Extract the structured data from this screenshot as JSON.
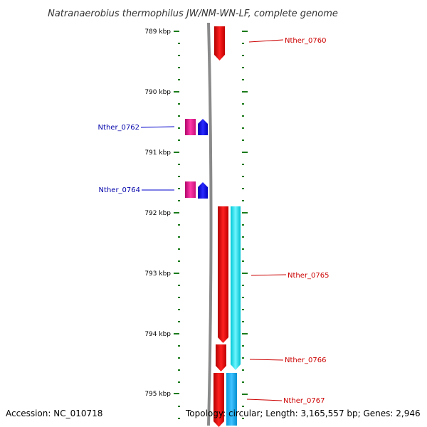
{
  "title": "Natranaerobius thermophilus JW/NM-WN-LF, complete genome",
  "ruler": {
    "unit": "kbp",
    "labels": [
      "789 kbp",
      "790 kbp",
      "791 kbp",
      "792 kbp",
      "793 kbp",
      "794 kbp",
      "795 kbp"
    ],
    "tick_color": "#1a7a1a"
  },
  "genes": [
    {
      "label": "Nther_0760",
      "strand": "reverse",
      "color": "#e8141b"
    },
    {
      "label": "Nther_0762",
      "strand": "forward",
      "color": "#1010e0"
    },
    {
      "label": "Nther_0764",
      "strand": "forward",
      "color": "#1010e0"
    },
    {
      "label": "Nther_0765",
      "strand": "reverse",
      "color": "#e8141b"
    },
    {
      "label": "Nther_0766",
      "strand": "reverse",
      "color": "#e8141b"
    },
    {
      "label": "Nther_0767",
      "strand": "reverse",
      "color": "#e8141b"
    }
  ],
  "colors": {
    "forward_label": "#0000aa",
    "reverse_label": "#cc0000",
    "cds_reverse": "#e8141b",
    "cds_forward": "#1010e0",
    "feature_magenta": "#e0148c",
    "feature_cyan": "#12e6f0",
    "backbone": "#8a8a8a"
  },
  "footer": {
    "accession": "Accession: NC_010718",
    "stats": "Topology: circular; Length: 3,165,557 bp; Genes: 2,946"
  }
}
